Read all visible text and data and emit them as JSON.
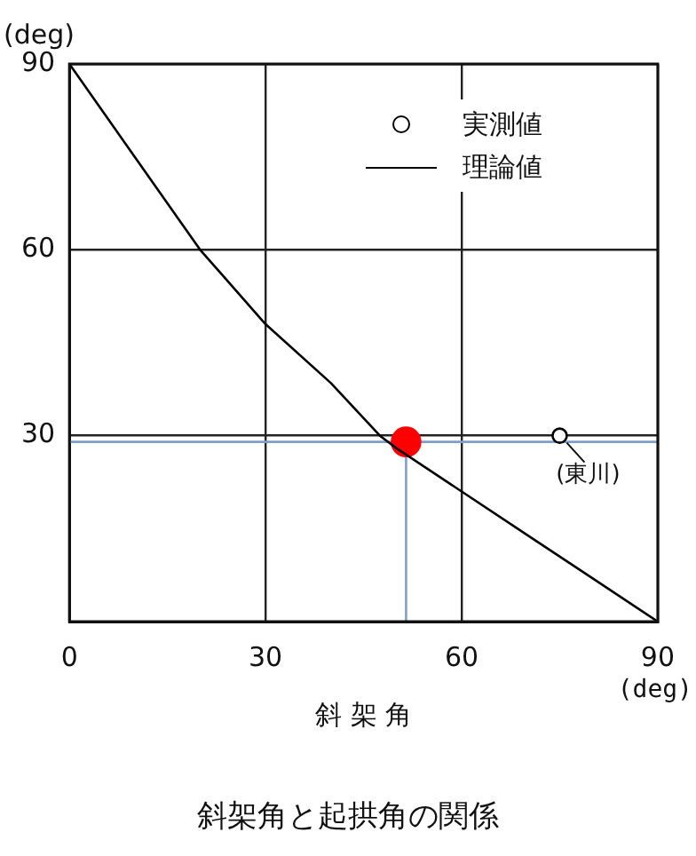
{
  "chart_data": {
    "type": "line",
    "title": "斜架角と起拱角の関係",
    "xlabel": "斜 架 角",
    "ylabel": "(deg)",
    "annotations": [
      "(deg)",
      {
        "text": "(東川)",
        "x": 75,
        "y": 30
      }
    ],
    "xlim": [
      0,
      90
    ],
    "ylim": [
      0,
      90
    ],
    "xticks": [
      0,
      30,
      60,
      90
    ],
    "yticks": [
      {
        "value": 0,
        "label": null
      },
      30,
      60,
      90
    ],
    "grid": true,
    "legend": "top right",
    "series": [
      {
        "name": "実測値",
        "type": "scatter",
        "marker": "circle",
        "color": "#000000",
        "x": [
          75
        ],
        "values": [
          30
        ]
      },
      {
        "name": "理論値",
        "marker": "none",
        "color": "#000000",
        "x": [
          0,
          10,
          20,
          30,
          40,
          47.5,
          50,
          60,
          70,
          80,
          90
        ],
        "values": [
          90,
          75,
          60,
          48,
          38.5,
          30,
          28,
          21,
          14,
          7,
          0
        ]
      },
      {
        "type": "scatter",
        "marker": "circle",
        "color": "#ff0000",
        "x": [
          51.5
        ],
        "values": [
          29
        ]
      },
      {
        "marker": "none",
        "color": "#7f9fc8",
        "x": [
          0,
          90
        ],
        "values": [
          29,
          29
        ]
      },
      {
        "marker": "none",
        "color": "#7f9fc8",
        "x": [
          51.5,
          51.5
        ],
        "values": [
          0,
          29
        ]
      }
    ]
  }
}
